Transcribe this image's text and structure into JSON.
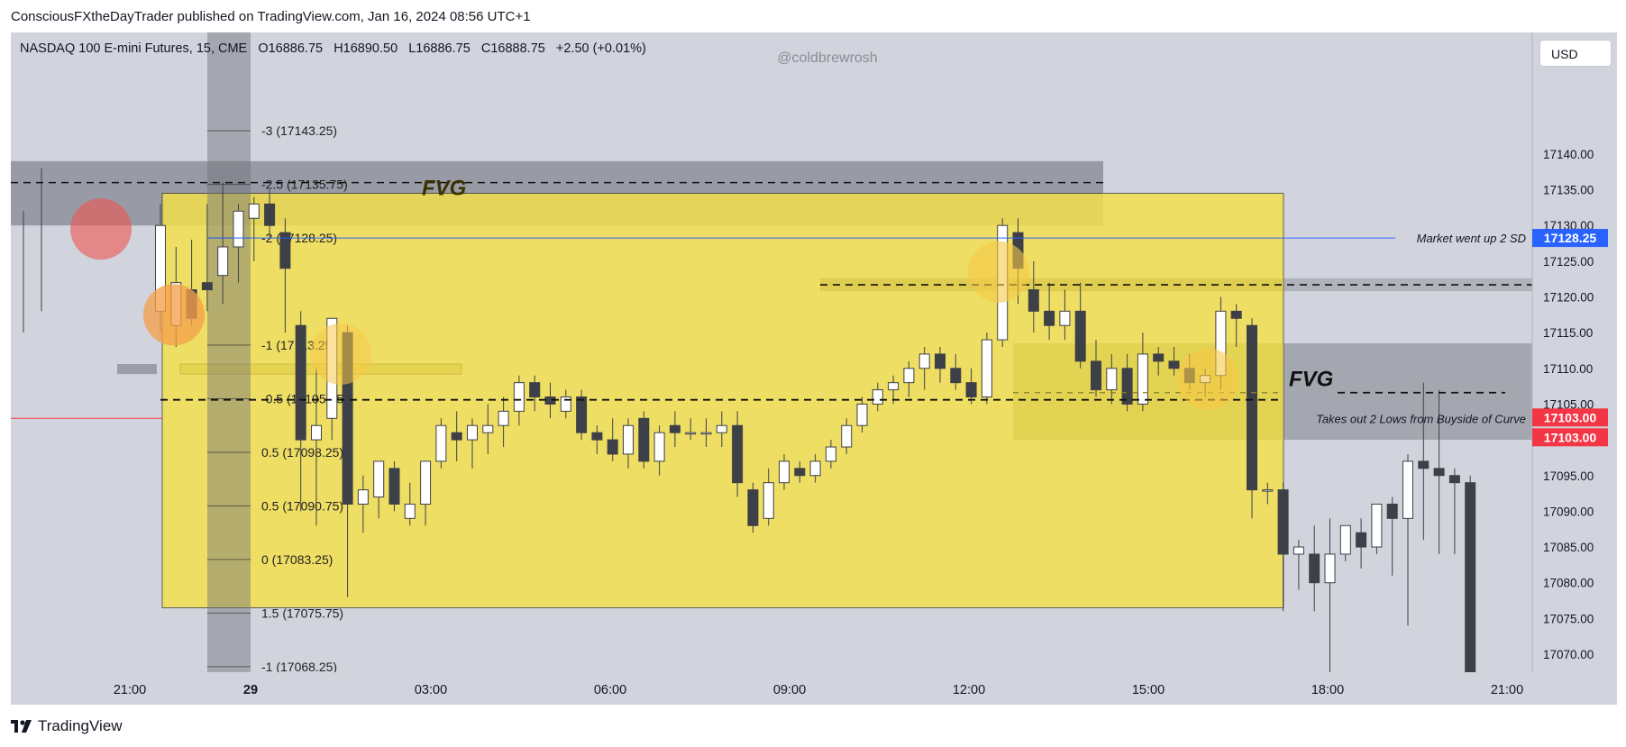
{
  "header": {
    "publisher": "ConsciousFXtheDayTrader published on TradingView.com, Jan 16, 2024 08:56 UTC+1"
  },
  "legend": {
    "symbol": "NASDAQ 100 E-mini Futures, 15, CME",
    "open": "O16886.75",
    "high": "H16890.50",
    "low": "L16886.75",
    "close": "C16888.75",
    "change": "+2.50 (+0.01%)"
  },
  "watermark": "@coldbrewrosh",
  "currency_button": "USD",
  "footer": {
    "brand": "TradingView"
  },
  "colors": {
    "chart_bg": "#d1d4dc",
    "zone_yellow": "#f5e14a",
    "fvg_grey": "#9598a1",
    "bull_candle": "#ffffff",
    "bear_candle": "#3e4047",
    "blue_label": "#2962ff",
    "red_label": "#f23645",
    "red_circle": "#ef5350",
    "yellow_circle": "#f7c948"
  },
  "chart_data": {
    "type": "candlestick",
    "symbol": "NASDAQ 100 E-mini Futures",
    "timeframe": "15",
    "ylim": [
      17066.5,
      17142.0
    ],
    "y_ticks": [
      17070,
      17075,
      17080,
      17085,
      17090,
      17095,
      17100,
      17105,
      17110,
      17115,
      17120,
      17125,
      17130,
      17135,
      17140
    ],
    "x_tick_labels": [
      "21:00",
      "29",
      "03:00",
      "06:00",
      "09:00",
      "12:00",
      "15:00",
      "18:00",
      "21:00"
    ],
    "price_labels": [
      {
        "text": "17128.25",
        "color": "blue"
      },
      {
        "text": "17103.00",
        "color": "red"
      },
      {
        "text": "17103.00",
        "color": "red"
      }
    ],
    "annotations": {
      "fvg_top": "FVG",
      "fvg_right": "FVG",
      "market_note": "Market went up 2 SD",
      "takes_note": "Takes out 2 Lows from Buyside of Curve"
    },
    "fib_levels": [
      {
        "label": "-3 (17143.25)",
        "value": 17143.25
      },
      {
        "label": "-2.5 (17135.75)",
        "value": 17135.75
      },
      {
        "label": "-2 (17128.25)",
        "value": 17128.25
      },
      {
        "label": "-1 (17113.25)",
        "value": 17113.25
      },
      {
        "label": "-0.5 (17105.75)",
        "value": 17105.75
      },
      {
        "label": "0.5 (17098.25)",
        "value": 17098.25
      },
      {
        "label": "0.5 (17090.75)",
        "value": 17090.75
      },
      {
        "label": "0 (17083.25)",
        "value": 17083.25
      },
      {
        "label": "1.5 (17075.75)",
        "value": 17075.75
      },
      {
        "label": "-1 (17068.25)",
        "value": 17068.25
      }
    ],
    "candles": [
      [
        17118,
        17133,
        17115,
        17130
      ],
      [
        17116,
        17127,
        17113,
        17122
      ],
      [
        17121,
        17128,
        17116,
        17117
      ],
      [
        17122,
        17133,
        17118,
        17121
      ],
      [
        17123,
        17136,
        17119,
        17127
      ],
      [
        17127,
        17133,
        17122,
        17132
      ],
      [
        17131,
        17134,
        17125,
        17133
      ],
      [
        17133,
        17135,
        17128,
        17130
      ],
      [
        17129,
        17131,
        17115,
        17124
      ],
      [
        17116,
        17118,
        17090,
        17100
      ],
      [
        17100,
        17110,
        17088,
        17102
      ],
      [
        17103,
        17117,
        17100,
        17117
      ],
      [
        17115,
        17116,
        17078,
        17091
      ],
      [
        17091,
        17095,
        17087,
        17093
      ],
      [
        17092,
        17097,
        17089,
        17097
      ],
      [
        17096,
        17097,
        17090,
        17091
      ],
      [
        17089,
        17094,
        17088,
        17091
      ],
      [
        17091,
        17097,
        17088,
        17097
      ],
      [
        17097,
        17103,
        17096,
        17102
      ],
      [
        17101,
        17104,
        17097,
        17100
      ],
      [
        17100,
        17103,
        17096,
        17102
      ],
      [
        17101,
        17105,
        17098,
        17102
      ],
      [
        17102,
        17106,
        17099,
        17104
      ],
      [
        17104,
        17109,
        17102,
        17108
      ],
      [
        17108,
        17109,
        17104,
        17106
      ],
      [
        17106,
        17108,
        17103,
        17105
      ],
      [
        17104,
        17107,
        17103,
        17106
      ],
      [
        17106,
        17107,
        17100,
        17101
      ],
      [
        17101,
        17102,
        17098,
        17100
      ],
      [
        17100,
        17103,
        17097,
        17098
      ],
      [
        17098,
        17103,
        17096,
        17102
      ],
      [
        17103,
        17104,
        17096,
        17097
      ],
      [
        17097,
        17102,
        17095,
        17101
      ],
      [
        17102,
        17104,
        17099,
        17101
      ],
      [
        17101,
        17103,
        17100,
        17101
      ],
      [
        17101,
        17103,
        17099,
        17101
      ],
      [
        17101,
        17104,
        17099,
        17102
      ],
      [
        17102,
        17104,
        17092,
        17094
      ],
      [
        17093,
        17094,
        17087,
        17088
      ],
      [
        17089,
        17096,
        17088,
        17094
      ],
      [
        17094,
        17098,
        17093,
        17097
      ],
      [
        17096,
        17097,
        17094,
        17095
      ],
      [
        17095,
        17098,
        17094,
        17097
      ],
      [
        17097,
        17100,
        17096,
        17099
      ],
      [
        17099,
        17103,
        17098,
        17102
      ],
      [
        17102,
        17106,
        17101,
        17105
      ],
      [
        17105,
        17108,
        17104,
        17107
      ],
      [
        17107,
        17109,
        17105,
        17108
      ],
      [
        17108,
        17111,
        17106,
        17110
      ],
      [
        17110,
        17113,
        17107,
        17112
      ],
      [
        17112,
        17113,
        17108,
        17110
      ],
      [
        17110,
        17112,
        17107,
        17108
      ],
      [
        17108,
        17110,
        17105,
        17106
      ],
      [
        17106,
        17115,
        17105,
        17114
      ],
      [
        17114,
        17131,
        17113,
        17130
      ],
      [
        17129,
        17131,
        17119,
        17124
      ],
      [
        17121,
        17125,
        17115,
        17118
      ],
      [
        17118,
        17122,
        17114,
        17116
      ],
      [
        17116,
        17121,
        17114,
        17118
      ],
      [
        17118,
        17122,
        17110,
        17111
      ],
      [
        17111,
        17114,
        17106,
        17107
      ],
      [
        17107,
        17112,
        17105,
        17110
      ],
      [
        17110,
        17112,
        17104,
        17105
      ],
      [
        17105,
        17115,
        17104,
        17112
      ],
      [
        17112,
        17113,
        17109,
        17111
      ],
      [
        17111,
        17113,
        17109,
        17110
      ],
      [
        17110,
        17112,
        17107,
        17108
      ],
      [
        17108,
        17110,
        17106,
        17109
      ],
      [
        17109,
        17120,
        17107,
        17118
      ],
      [
        17118,
        17119,
        17113,
        17117
      ],
      [
        17116,
        17117,
        17089,
        17093
      ],
      [
        17093,
        17094,
        17091,
        17093
      ],
      [
        17093,
        17094,
        17076,
        17084
      ],
      [
        17084,
        17086,
        17079,
        17085
      ],
      [
        17084,
        17088,
        17076,
        17080
      ],
      [
        17080,
        17089,
        17066,
        17084
      ],
      [
        17084,
        17088,
        17083,
        17088
      ],
      [
        17087,
        17089,
        17082,
        17085
      ],
      [
        17085,
        17091,
        17084,
        17091
      ],
      [
        17091,
        17092,
        17081,
        17089
      ],
      [
        17089,
        17098,
        17074,
        17097
      ],
      [
        17097,
        17108,
        17086,
        17096
      ],
      [
        17096,
        17107,
        17084,
        17095
      ],
      [
        17095,
        17096,
        17084,
        17094
      ],
      [
        17094,
        17095,
        17066,
        17066
      ]
    ]
  }
}
